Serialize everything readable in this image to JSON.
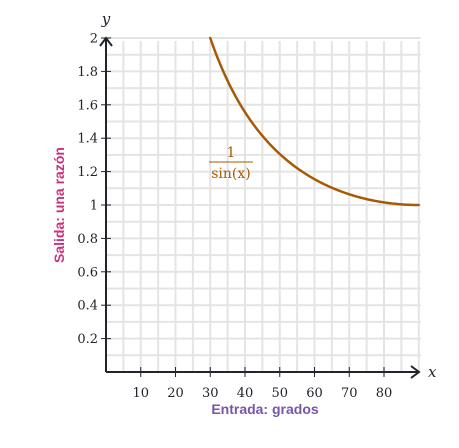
{
  "chart_data": {
    "type": "line",
    "title": "",
    "xlabel": "Entrada: grados",
    "ylabel": "Salida: una razón",
    "x_axis_symbol": "x",
    "y_axis_symbol": "y",
    "xlim": [
      0,
      90
    ],
    "ylim": [
      0,
      2
    ],
    "x_ticks": [
      10,
      20,
      30,
      40,
      50,
      60,
      70,
      80
    ],
    "x_tick_labels": [
      "10",
      "20",
      "30",
      "40",
      "50",
      "60",
      "70",
      "80"
    ],
    "y_ticks": [
      0.2,
      0.4,
      0.6,
      0.8,
      1,
      1.2,
      1.4,
      1.6,
      1.8,
      2
    ],
    "y_tick_labels": [
      "0.2",
      "0.4",
      "0.6",
      "0.8",
      "1",
      "1.2",
      "1.4",
      "1.6",
      "1.8",
      "2"
    ],
    "grid": true,
    "series": [
      {
        "function": "csc",
        "label_numerator": "1",
        "label_denominator": "sin(x)",
        "color": "#a75a05",
        "x": [
          30,
          35,
          40,
          45,
          50,
          55,
          60,
          65,
          70,
          75,
          80,
          85,
          90
        ],
        "y": [
          2.0,
          1.743,
          1.556,
          1.414,
          1.305,
          1.221,
          1.155,
          1.103,
          1.064,
          1.035,
          1.015,
          1.004,
          1.0
        ]
      }
    ]
  },
  "colors": {
    "ylabel": "#ca337c",
    "xlabel": "#7854ab",
    "curve": "#a75a05",
    "grid": "#e4e4e4",
    "axis": "#21242c"
  }
}
